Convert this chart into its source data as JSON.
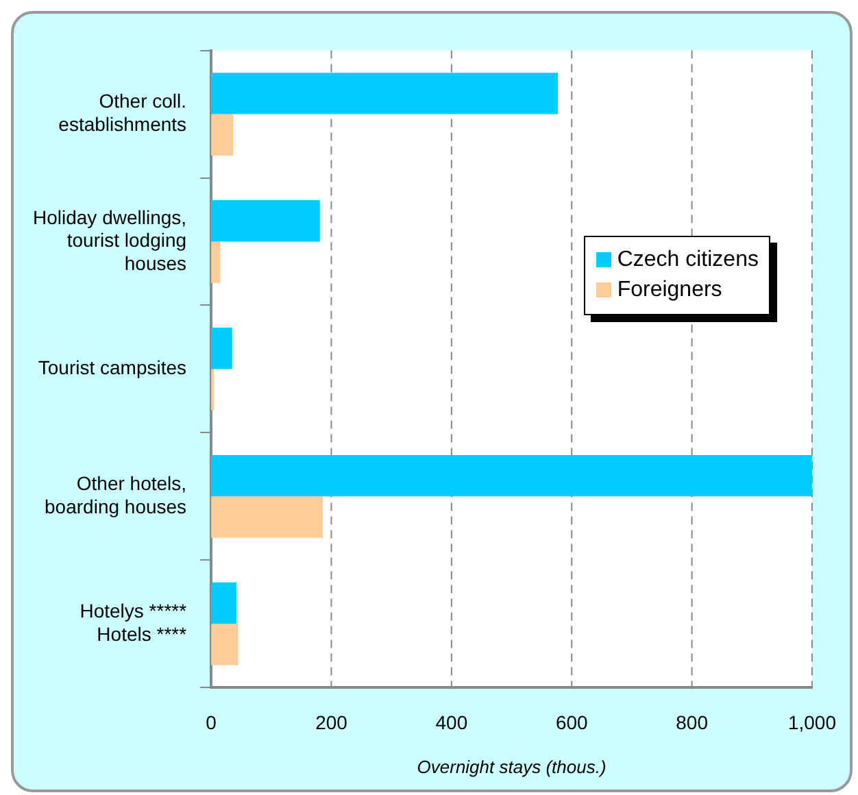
{
  "chart_data": {
    "type": "bar",
    "orientation": "horizontal",
    "xlabel": "Overnight stays (thous.)",
    "categories": [
      "Other coll. establishments",
      "Holiday dwellings, tourist lodging houses",
      "Tourist campsites",
      "Other hotels, boarding houses",
      "Hotelys ***** Hotels ****"
    ],
    "series": [
      {
        "name": "Czech citizens",
        "color": "#00ccff",
        "values": [
          577,
          181,
          35,
          1000,
          42
        ]
      },
      {
        "name": "Foreigners",
        "color": "#ffcc99",
        "values": [
          37,
          15,
          5,
          186,
          45
        ]
      }
    ],
    "xlim": [
      0,
      1000
    ],
    "xticks": [
      0,
      200,
      400,
      600,
      800,
      {
        "value": 1000,
        "label": "1,000"
      }
    ],
    "grid": "x",
    "legend": "right"
  }
}
